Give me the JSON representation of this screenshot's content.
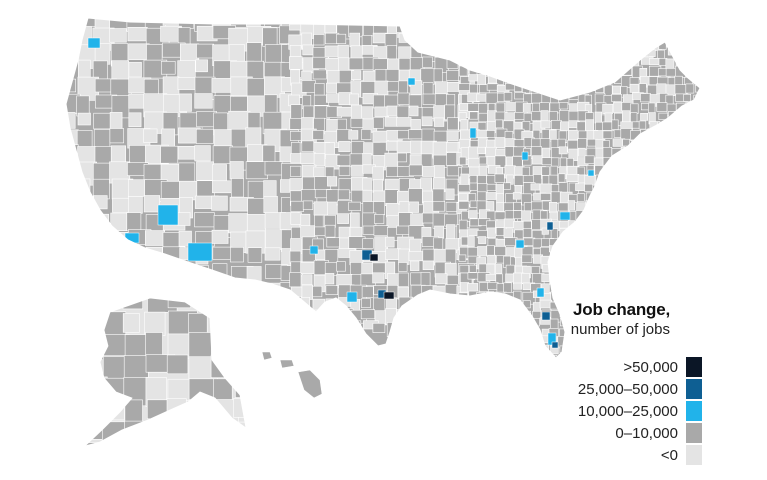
{
  "legend": {
    "title": "Job change,",
    "subtitle": "number of jobs",
    "items": [
      {
        "label": ">50,000",
        "color": "#0b1626"
      },
      {
        "label": "25,000–50,000",
        "color": "#0e5f93"
      },
      {
        "label": "10,000–25,000",
        "color": "#21b3ea"
      },
      {
        "label": "0–10,000",
        "color": "#a9a9a9"
      },
      {
        "label": "<0",
        "color": "#e4e4e4"
      }
    ]
  },
  "colors": {
    "background": "#ffffff",
    "county_border": "#ffffff",
    "neg": "#e4e4e4",
    "low": "#a9a9a9",
    "mid": "#21b3ea",
    "high": "#0e5f93",
    "top": "#0b1626"
  }
}
